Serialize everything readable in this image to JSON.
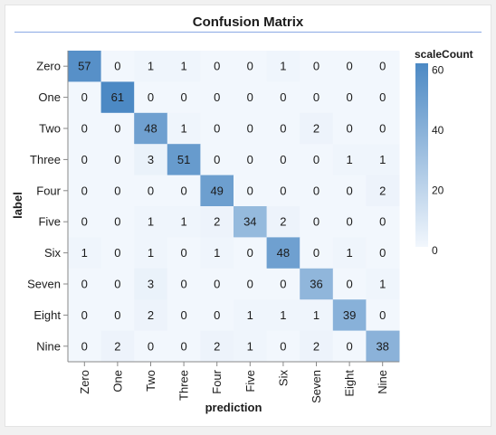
{
  "chart_data": {
    "type": "heatmap",
    "title": "Confusion Matrix",
    "xlabel": "prediction",
    "ylabel": "label",
    "x_categories": [
      "Zero",
      "One",
      "Two",
      "Three",
      "Four",
      "Five",
      "Six",
      "Seven",
      "Eight",
      "Nine"
    ],
    "y_categories": [
      "Zero",
      "One",
      "Two",
      "Three",
      "Four",
      "Five",
      "Six",
      "Seven",
      "Eight",
      "Nine"
    ],
    "values": [
      [
        57,
        0,
        1,
        1,
        0,
        0,
        1,
        0,
        0,
        0
      ],
      [
        0,
        61,
        0,
        0,
        0,
        0,
        0,
        0,
        0,
        0
      ],
      [
        0,
        0,
        48,
        1,
        0,
        0,
        0,
        2,
        0,
        0
      ],
      [
        0,
        0,
        3,
        51,
        0,
        0,
        0,
        0,
        1,
        1
      ],
      [
        0,
        0,
        0,
        0,
        49,
        0,
        0,
        0,
        0,
        2
      ],
      [
        0,
        0,
        1,
        1,
        2,
        34,
        2,
        0,
        0,
        0
      ],
      [
        1,
        0,
        1,
        0,
        1,
        0,
        48,
        0,
        1,
        0
      ],
      [
        0,
        0,
        3,
        0,
        0,
        0,
        0,
        36,
        0,
        1
      ],
      [
        0,
        0,
        2,
        0,
        0,
        1,
        1,
        1,
        39,
        0
      ],
      [
        0,
        2,
        0,
        0,
        2,
        1,
        0,
        2,
        0,
        38
      ]
    ],
    "legend": {
      "title": "scaleCount",
      "ticks": [
        "60",
        "40",
        "20",
        "0"
      ],
      "tick_values": [
        60,
        40,
        20,
        0
      ],
      "range": [
        0,
        61
      ],
      "placement": "right"
    },
    "colors": {
      "low": "#f2f7fd",
      "high": "#4c89c4",
      "title_rule": "#8ba9e4"
    }
  }
}
